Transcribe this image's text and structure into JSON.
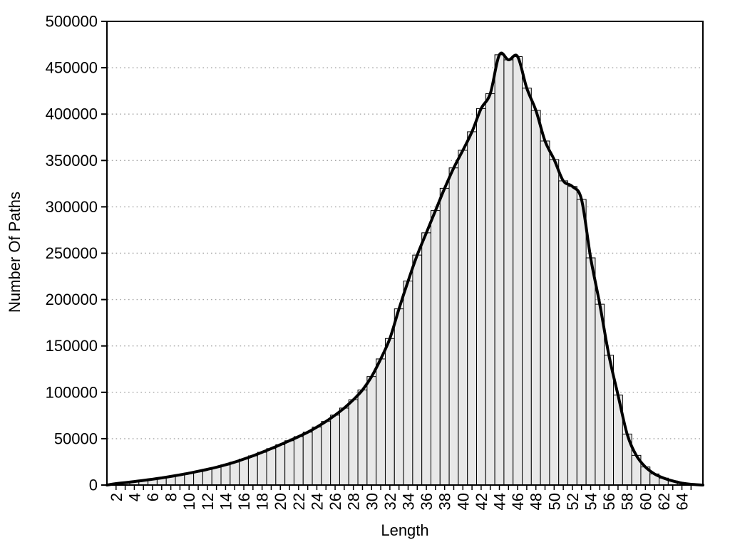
{
  "figure": {
    "background": "#ffffff"
  },
  "chart_data": {
    "type": "bar",
    "subtype": "histogram-with-smooth-line-overlay",
    "title": "",
    "xlabel": "Length",
    "ylabel": "Number Of Paths",
    "xlim": [
      1,
      66.3
    ],
    "ylim": [
      0,
      500000
    ],
    "grid": "horizontal-dotted",
    "legend": "none",
    "x": [
      2,
      3,
      4,
      5,
      6,
      7,
      8,
      9,
      10,
      11,
      12,
      13,
      14,
      15,
      16,
      17,
      18,
      19,
      20,
      21,
      22,
      23,
      24,
      25,
      26,
      27,
      28,
      29,
      30,
      31,
      32,
      33,
      34,
      35,
      36,
      37,
      38,
      39,
      40,
      41,
      42,
      43,
      44,
      45,
      46,
      47,
      48,
      49,
      50,
      51,
      52,
      53,
      54,
      55,
      56,
      57,
      58,
      59,
      60,
      61,
      62,
      63,
      64,
      65
    ],
    "values": [
      1500,
      2600,
      3800,
      5000,
      6300,
      7700,
      9300,
      11000,
      12800,
      14800,
      16900,
      19200,
      21800,
      24700,
      28000,
      31500,
      35300,
      39300,
      43500,
      47800,
      52200,
      57000,
      62500,
      68600,
      75400,
      83000,
      92000,
      102500,
      117000,
      136000,
      158000,
      190000,
      220000,
      248000,
      272000,
      296000,
      320000,
      342000,
      361000,
      381000,
      406000,
      422000,
      464000,
      458500,
      462000,
      428000,
      404000,
      371000,
      351000,
      328000,
      322000,
      308000,
      245000,
      195000,
      140000,
      97000,
      55000,
      32000,
      19500,
      12000,
      7500,
      4400,
      2100,
      800
    ],
    "xtick_values": [
      2,
      4,
      6,
      8,
      10,
      12,
      14,
      16,
      18,
      20,
      22,
      24,
      26,
      28,
      30,
      32,
      34,
      36,
      38,
      40,
      42,
      44,
      46,
      48,
      50,
      52,
      54,
      56,
      58,
      60,
      62,
      64
    ],
    "xtick_labels": [
      "2",
      "4",
      "6",
      "8",
      "10",
      "12",
      "14",
      "16",
      "18",
      "20",
      "22",
      "24",
      "26",
      "28",
      "30",
      "32",
      "34",
      "36",
      "38",
      "40",
      "42",
      "44",
      "46",
      "48",
      "50",
      "52",
      "54",
      "56",
      "58",
      "60",
      "62",
      "64"
    ],
    "minor_xticks_every": 1,
    "ytick_values": [
      0,
      50000,
      100000,
      150000,
      200000,
      250000,
      300000,
      350000,
      400000,
      450000,
      500000
    ],
    "ytick_labels": [
      "0",
      "50000",
      "100000",
      "150000",
      "200000",
      "250000",
      "300000",
      "350000",
      "400000",
      "450000",
      "500000"
    ],
    "colors": {
      "bar_fill": "#e8e8e8",
      "bar_stroke": "#000000",
      "line": "#000000",
      "grid": "#a6a6a6",
      "border": "#000000",
      "text": "#000000"
    }
  }
}
